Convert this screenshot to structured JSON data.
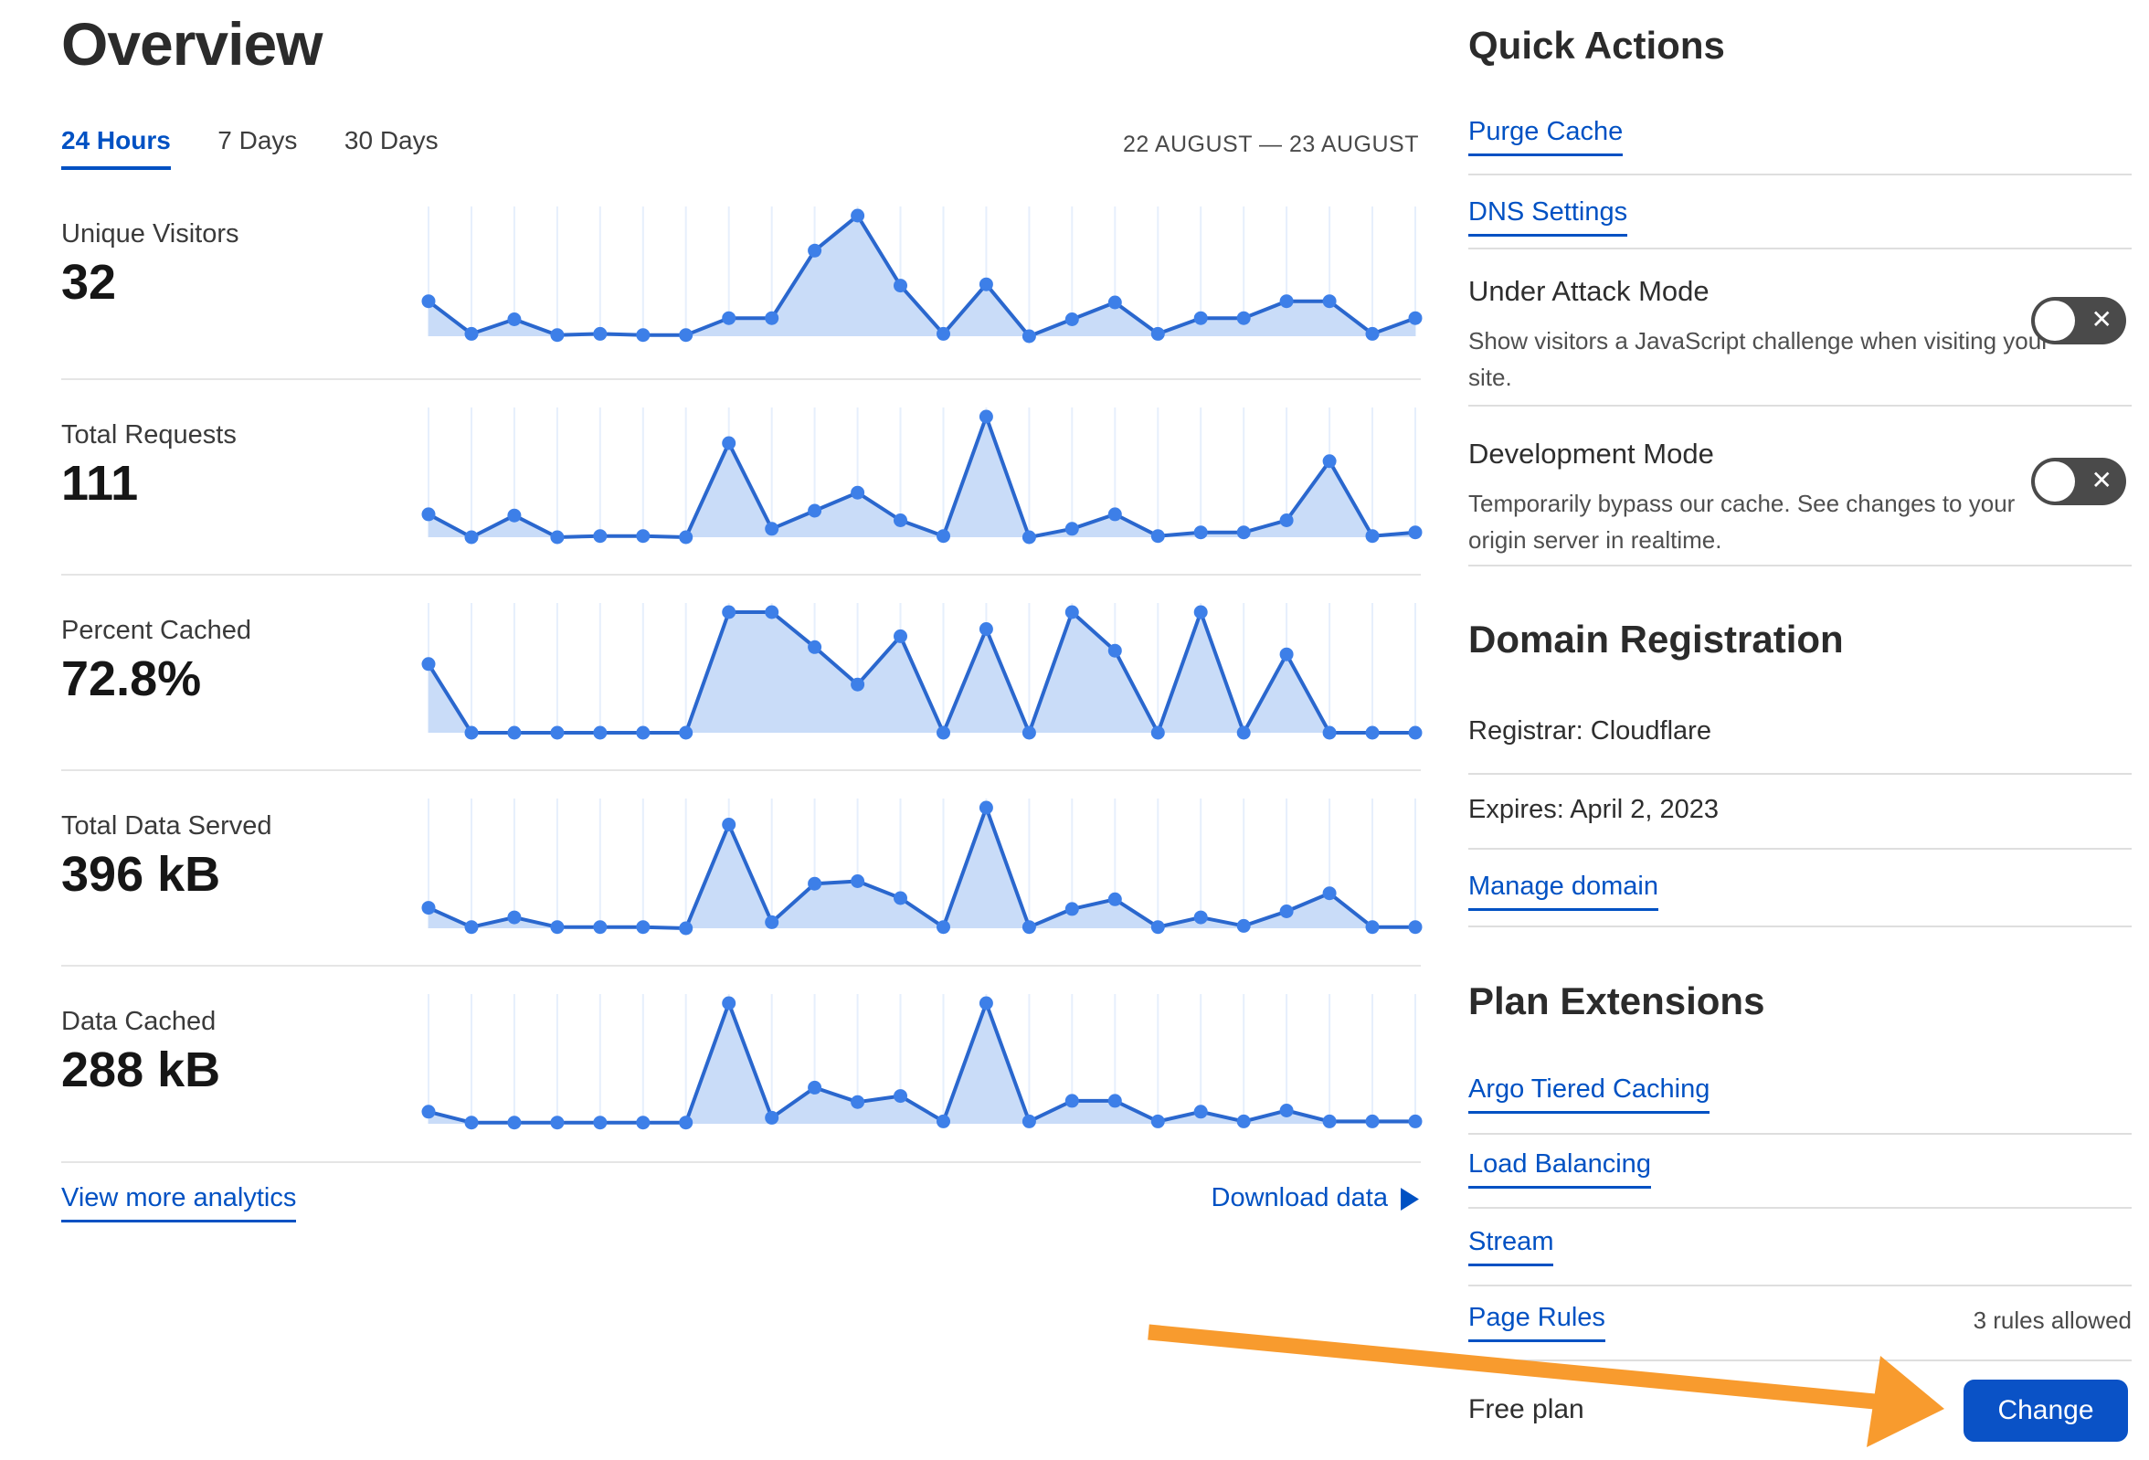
{
  "page": {
    "title": "Overview"
  },
  "toolbar": {
    "tabs": [
      {
        "label": "24 Hours",
        "active": true
      },
      {
        "label": "7 Days",
        "active": false
      },
      {
        "label": "30 Days",
        "active": false
      }
    ],
    "date_range": "22 AUGUST — 23 AUGUST"
  },
  "metrics": [
    {
      "label": "Unique Visitors",
      "value": "32"
    },
    {
      "label": "Total Requests",
      "value": "111"
    },
    {
      "label": "Percent Cached",
      "value": "72.8%"
    },
    {
      "label": "Total Data Served",
      "value": "396 kB"
    },
    {
      "label": "Data Cached",
      "value": "288 kB"
    }
  ],
  "footer": {
    "view_more_label": "View more analytics",
    "download_label": "Download data"
  },
  "quick_actions": {
    "heading": "Quick Actions",
    "links": [
      {
        "label": "Purge Cache"
      },
      {
        "label": "DNS Settings"
      }
    ],
    "modes": [
      {
        "title": "Under Attack Mode",
        "description": "Show visitors a JavaScript challenge when visiting your site.",
        "toggle_state": "off"
      },
      {
        "title": "Development Mode",
        "description": "Temporarily bypass our cache. See changes to your origin server in realtime.",
        "toggle_state": "off"
      }
    ]
  },
  "domain_registration": {
    "heading": "Domain Registration",
    "registrar": "Registrar: Cloudflare",
    "expires": "Expires: April 2, 2023",
    "manage_label": "Manage domain"
  },
  "plan_extensions": {
    "heading": "Plan Extensions",
    "links": [
      {
        "label": "Argo Tiered Caching",
        "note": ""
      },
      {
        "label": "Load Balancing",
        "note": ""
      },
      {
        "label": "Stream",
        "note": ""
      },
      {
        "label": "Page Rules",
        "note": "3 rules allowed"
      }
    ]
  },
  "plan": {
    "current_label": "Free plan",
    "change_button_label": "Change"
  },
  "annotation": {
    "type": "arrow",
    "color": "#f89b2e",
    "points_to": "Change button"
  },
  "glyphs": {
    "x": "✕",
    "triangle_right": "▶"
  },
  "colors": {
    "link_blue": "#0051c3",
    "chart_line": "#2a67ce",
    "chart_dot": "#3d7fe8",
    "chart_fill": "#c9dcf8",
    "chart_grid": "#e6effc",
    "toggle_bg": "#4a4a4a",
    "button_bg": "#0a52c6",
    "arrow_orange": "#f89b2e"
  },
  "chart_data": [
    {
      "type": "area",
      "title": "Unique Visitors",
      "headline_value": "32",
      "x_axis": "24 hourly intervals, 22–23 August",
      "y_axis": "relative to peak hour (0–1)",
      "grid": true,
      "legend": false,
      "values": [
        0.29,
        0.02,
        0.14,
        0.01,
        0.02,
        0.01,
        0.01,
        0.15,
        0.15,
        0.71,
        1,
        0.42,
        0.02,
        0.43,
        0,
        0.14,
        0.28,
        0.02,
        0.15,
        0.15,
        0.29,
        0.29,
        0.02,
        0.15
      ]
    },
    {
      "type": "area",
      "title": "Total Requests",
      "headline_value": "111",
      "x_axis": "24 hourly intervals, 22–23 August",
      "y_axis": "relative to peak hour (0–1)",
      "grid": true,
      "legend": false,
      "values": [
        0.19,
        0,
        0.18,
        0,
        0.01,
        0.01,
        0,
        0.78,
        0.07,
        0.22,
        0.37,
        0.14,
        0.01,
        1,
        0,
        0.07,
        0.19,
        0.01,
        0.04,
        0.04,
        0.14,
        0.63,
        0.01,
        0.04
      ]
    },
    {
      "type": "area",
      "title": "Percent Cached",
      "headline_value": "72.8%",
      "x_axis": "24 hourly intervals, 22–23 August",
      "y_axis": "percent cached (fraction of peak)",
      "grid": true,
      "legend": false,
      "values": [
        0.57,
        0,
        0,
        0,
        0,
        0,
        0,
        1,
        1,
        0.71,
        0.4,
        0.8,
        0,
        0.86,
        0,
        1,
        0.68,
        0,
        1,
        0,
        0.65,
        0,
        0,
        0
      ]
    },
    {
      "type": "area",
      "title": "Total Data Served",
      "headline_value": "396 kB",
      "x_axis": "24 hourly intervals, 22–23 August",
      "y_axis": "relative to peak hour (0–1)",
      "grid": true,
      "legend": false,
      "values": [
        0.17,
        0.01,
        0.09,
        0.01,
        0.01,
        0.01,
        0,
        0.86,
        0.05,
        0.37,
        0.39,
        0.25,
        0.01,
        1,
        0.01,
        0.16,
        0.24,
        0.01,
        0.09,
        0.02,
        0.14,
        0.29,
        0.01,
        0.01
      ]
    },
    {
      "type": "area",
      "title": "Data Cached",
      "headline_value": "288 kB",
      "x_axis": "24 hourly intervals, 22–23 August",
      "y_axis": "relative to peak hour (0–1)",
      "grid": true,
      "legend": false,
      "values": [
        0.1,
        0.01,
        0.01,
        0.01,
        0.01,
        0.01,
        0.01,
        1,
        0.05,
        0.3,
        0.18,
        0.23,
        0.02,
        1,
        0.02,
        0.19,
        0.19,
        0.02,
        0.1,
        0.02,
        0.11,
        0.02,
        0.02,
        0.02
      ]
    }
  ]
}
